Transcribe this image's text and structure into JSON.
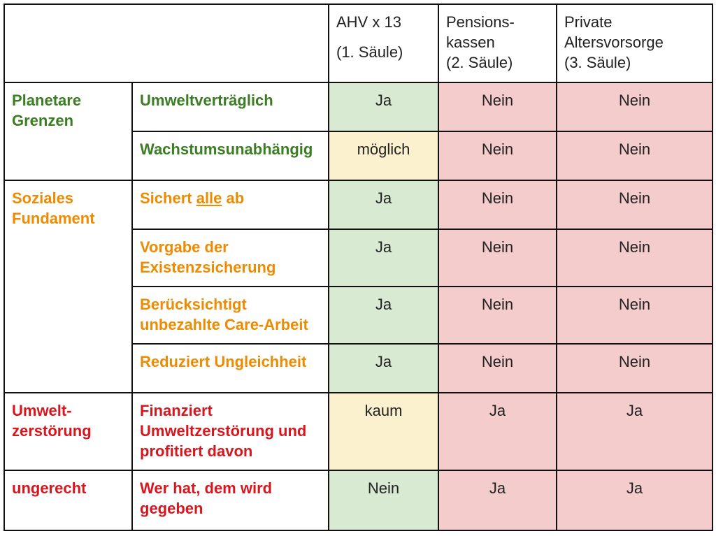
{
  "header": {
    "col1_line1": "AHV x 13",
    "col1_line2": "(1. Säule)",
    "col2_line1": "Pensions-",
    "col2_line2": "kassen",
    "col2_line3": "(2. Säule)",
    "col3_line1": "Private",
    "col3_line2": "Altersvorsorge",
    "col3_line3": "(3. Säule)"
  },
  "groups": {
    "planetary_l1": "Planetare",
    "planetary_l2": "Grenzen",
    "social_l1": "Soziales",
    "social_l2": "Fundament",
    "destruction_l1": "Umwelt-",
    "destruction_l2": "zerstörung",
    "unjust": "ungerecht"
  },
  "rows": [
    {
      "label": "Umweltverträglich",
      "ahv": "Ja",
      "pk": "Nein",
      "pv": "Nein"
    },
    {
      "label": "Wachstumsunabhängig",
      "ahv": "möglich",
      "pk": "Nein",
      "pv": "Nein"
    },
    {
      "label_pre": "Sichert ",
      "label_underlined": "alle",
      "label_post": " ab",
      "ahv": "Ja",
      "pk": "Nein",
      "pv": "Nein"
    },
    {
      "label_l1": "Vorgabe der",
      "label_l2": "Existenzsicherung",
      "ahv": "Ja",
      "pk": "Nein",
      "pv": "Nein"
    },
    {
      "label_l1": "Berücksichtigt",
      "label_l2": "unbezahlte Care-Arbeit",
      "ahv": "Ja",
      "pk": "Nein",
      "pv": "Nein"
    },
    {
      "label": "Reduziert Ungleichheit",
      "ahv": "Ja",
      "pk": "Nein",
      "pv": "Nein"
    },
    {
      "label_l1": "Finanziert",
      "label_l2": "Umweltzerstörung und",
      "label_l3": "profitiert davon",
      "ahv": "kaum",
      "pk": "Ja",
      "pv": "Ja"
    },
    {
      "label_l1": "Wer hat, dem wird",
      "label_l2": "gegeben",
      "ahv": "Nein",
      "pk": "Ja",
      "pv": "Ja"
    }
  ],
  "colors": {
    "green_text": "#3a7d22",
    "orange_text": "#ee8b00",
    "red_text": "#d8161e",
    "cell_green": "#d9ead3",
    "cell_yellow": "#fcf1cf",
    "cell_red": "#f4cccc"
  }
}
